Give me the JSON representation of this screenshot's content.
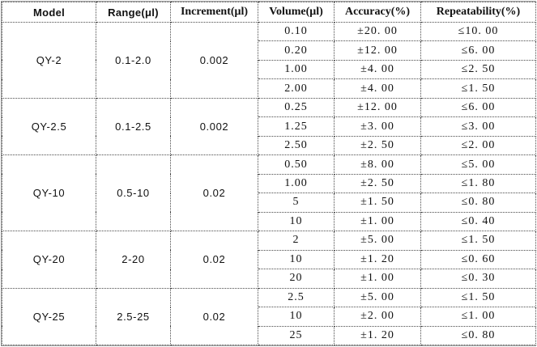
{
  "table": {
    "headers": [
      "Model",
      "Range(μl)",
      "Increment(μl)",
      "Volume(μl)",
      "Accuracy(%)",
      "Repeatability(%)"
    ],
    "groups": [
      {
        "model": "QY-2",
        "range": "0.1-2.0",
        "increment": "0.002",
        "rows": [
          [
            "0.10",
            "±20. 00",
            "≤10. 00"
          ],
          [
            "0.20",
            "±12. 00",
            "≤6. 00"
          ],
          [
            "1.00",
            "±4. 00",
            "≤2. 50"
          ],
          [
            "2.00",
            "±4. 00",
            "≤1. 50"
          ]
        ]
      },
      {
        "model": "QY-2.5",
        "range": "0.1-2.5",
        "increment": "0.002",
        "rows": [
          [
            "0.25",
            "±12. 00",
            "≤6. 00"
          ],
          [
            "1.25",
            "±3. 00",
            "≤3. 00"
          ],
          [
            "2.50",
            "±2. 50",
            "≤2. 00"
          ]
        ]
      },
      {
        "model": "QY-10",
        "range": "0.5-10",
        "increment": "0.02",
        "rows": [
          [
            "0.50",
            "±8. 00",
            "≤5. 00"
          ],
          [
            "1.00",
            "±2. 50",
            "≤1. 80"
          ],
          [
            "5",
            "±1. 50",
            "≤0. 80"
          ],
          [
            "10",
            "±1. 00",
            "≤0. 40"
          ]
        ]
      },
      {
        "model": "QY-20",
        "range": "2-20",
        "increment": "0.02",
        "rows": [
          [
            "2",
            "±5. 00",
            "≤1. 50"
          ],
          [
            "10",
            "±1. 20",
            "≤0. 60"
          ],
          [
            "20",
            "±1. 00",
            "≤0. 30"
          ]
        ]
      },
      {
        "model": "QY-25",
        "range": "2.5-25",
        "increment": "0.02",
        "rows": [
          [
            "2.5",
            "±5. 00",
            "≤1. 50"
          ],
          [
            "10",
            "±2. 00",
            "≤1. 00"
          ],
          [
            "25",
            "±1. 20",
            "≤0. 80"
          ]
        ]
      }
    ]
  }
}
